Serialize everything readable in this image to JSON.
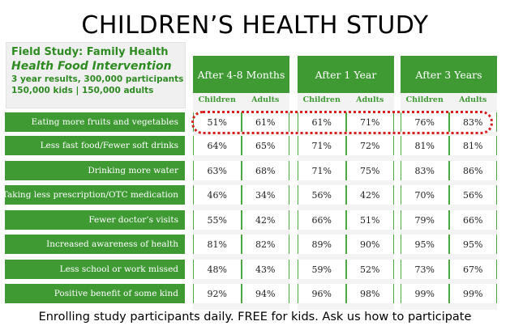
{
  "title": "CHILDREN’S HEALTH STUDY",
  "info_box": {
    "line1": "Field Study: Family Health",
    "line2": "Health Food Intervention",
    "line3": "3 year results, 300,000 participants",
    "line4": "150,000 kids | 150,000 adults"
  },
  "periods": [
    "After 4-8 Months",
    "After 1 Year",
    "After 3 Years"
  ],
  "subheaders": [
    "Children",
    "Adults"
  ],
  "rows": [
    {
      "label": "Eating more fruits and vegetables",
      "values": [
        "51%",
        "61%",
        "61%",
        "71%",
        "76%",
        "83%"
      ]
    },
    {
      "label": "Less fast food/Fewer soft drinks",
      "values": [
        "64%",
        "65%",
        "71%",
        "72%",
        "81%",
        "81%"
      ]
    },
    {
      "label": "Drinking more water",
      "values": [
        "63%",
        "68%",
        "71%",
        "75%",
        "83%",
        "86%"
      ]
    },
    {
      "label": "Taking less prescription/OTC medication",
      "values": [
        "46%",
        "34%",
        "56%",
        "42%",
        "70%",
        "56%"
      ]
    },
    {
      "label": "Fewer doctor’s visits",
      "values": [
        "55%",
        "42%",
        "66%",
        "51%",
        "79%",
        "66%"
      ]
    },
    {
      "label": "Increased awareness of health",
      "values": [
        "81%",
        "82%",
        "89%",
        "90%",
        "95%",
        "95%"
      ]
    },
    {
      "label": "Less school or work missed",
      "values": [
        "48%",
        "43%",
        "59%",
        "52%",
        "73%",
        "67%"
      ]
    },
    {
      "label": "Positive benefit of some kind",
      "values": [
        "92%",
        "94%",
        "96%",
        "98%",
        "99%",
        "99%"
      ]
    }
  ],
  "footer": "Enrolling study participants daily.  FREE for kids.  Ask us how to participate",
  "colors": {
    "green": "#3f9a34",
    "highlight": "#d81f1f"
  }
}
